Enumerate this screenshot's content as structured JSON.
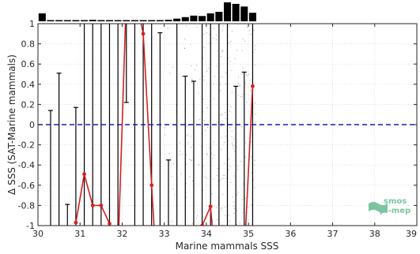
{
  "chart_data": {
    "type": "line",
    "xlabel": "Marine mammals SSS",
    "ylabel": "Δ SSS (SAT-Marine mammals)",
    "xlim": [
      30,
      39
    ],
    "ylim": [
      -1,
      1
    ],
    "x_ticks": [
      30,
      31,
      32,
      33,
      34,
      35,
      36,
      37,
      38,
      39
    ],
    "y_ticks": [
      -1,
      -0.8,
      -0.6,
      -0.4,
      -0.2,
      0,
      0.2,
      0.4,
      0.6,
      0.8,
      1
    ],
    "x_tick_labels": [
      "30",
      "31",
      "32",
      "33",
      "34",
      "35",
      "36",
      "37",
      "38",
      "39"
    ],
    "y_tick_labels": [
      "-1",
      "-0.8",
      "-0.6",
      "-0.4",
      "-0.2",
      "0",
      "0.2",
      "0.4",
      "0.6",
      "0.8",
      "1"
    ],
    "zero_line": {
      "y": 0,
      "color": "#1a1ab5",
      "style": "dashed"
    },
    "mean_series": {
      "color": "#d62020",
      "points": [
        {
          "x": 30.9,
          "y": -0.97
        },
        {
          "x": 31.1,
          "y": -0.49
        },
        {
          "x": 31.3,
          "y": -0.8
        },
        {
          "x": 31.5,
          "y": -0.8
        },
        {
          "x": 31.7,
          "y": -0.98
        },
        {
          "x": 31.9,
          "y": -1.3
        },
        {
          "x": 32.1,
          "y": 1.3
        },
        {
          "x": 32.3,
          "y": 1.3
        },
        {
          "x": 32.5,
          "y": 0.9
        },
        {
          "x": 32.7,
          "y": -0.6
        },
        {
          "x": 32.8,
          "y": -1.3
        },
        {
          "x": 33.7,
          "y": -1.3
        },
        {
          "x": 33.9,
          "y": -1.0
        },
        {
          "x": 34.1,
          "y": -0.81
        },
        {
          "x": 34.2,
          "y": -1.3
        },
        {
          "x": 34.9,
          "y": -1.3
        },
        {
          "x": 35.1,
          "y": 0.38
        }
      ]
    },
    "error_bars": [
      {
        "x": 30.3,
        "low": -1.0,
        "high": 0.14
      },
      {
        "x": 30.5,
        "low": -1.0,
        "high": 0.51
      },
      {
        "x": 30.7,
        "low": -1.0,
        "high": -0.79
      },
      {
        "x": 30.9,
        "low": -1.0,
        "high": 0.17
      },
      {
        "x": 31.1,
        "low": -1.0,
        "high": 1.0
      },
      {
        "x": 31.3,
        "low": -1.0,
        "high": 1.0
      },
      {
        "x": 31.5,
        "low": -1.0,
        "high": 1.0
      },
      {
        "x": 31.7,
        "low": -1.0,
        "high": 1.0
      },
      {
        "x": 31.9,
        "low": -1.0,
        "high": 1.0
      },
      {
        "x": 32.1,
        "low": 0.22,
        "high": 1.0
      },
      {
        "x": 32.3,
        "low": -1.0,
        "high": 1.0
      },
      {
        "x": 32.5,
        "low": -1.0,
        "high": 1.0
      },
      {
        "x": 32.7,
        "low": -1.0,
        "high": 1.0
      },
      {
        "x": 32.9,
        "low": -1.0,
        "high": 0.91
      },
      {
        "x": 33.1,
        "low": -1.0,
        "high": -0.35
      },
      {
        "x": 33.3,
        "low": -1.0,
        "high": 1.0
      },
      {
        "x": 33.5,
        "low": -1.0,
        "high": 0.48
      },
      {
        "x": 33.7,
        "low": -1.0,
        "high": 0.43
      },
      {
        "x": 33.9,
        "low": -1.0,
        "high": 1.0
      },
      {
        "x": 34.1,
        "low": -1.0,
        "high": 1.0
      },
      {
        "x": 34.3,
        "low": -1.0,
        "high": 1.0
      },
      {
        "x": 34.5,
        "low": -1.0,
        "high": 1.0
      },
      {
        "x": 34.7,
        "low": -1.0,
        "high": 0.38
      },
      {
        "x": 34.9,
        "low": -1.0,
        "high": 0.52
      },
      {
        "x": 35.1,
        "low": -1.0,
        "high": 1.0
      }
    ],
    "histogram": {
      "bin_edges": [
        30.0,
        30.2,
        30.4,
        30.6,
        30.8,
        31.0,
        31.2,
        31.4,
        31.6,
        31.8,
        32.0,
        32.2,
        32.4,
        32.6,
        32.8,
        33.0,
        33.2,
        33.4,
        33.6,
        33.8,
        34.0,
        34.2,
        34.4,
        34.6,
        34.8,
        35.0,
        35.2
      ],
      "relative_counts": [
        0.42,
        0.06,
        0.04,
        0.04,
        0.04,
        0.06,
        0.08,
        0.06,
        0.05,
        0.04,
        0.05,
        0.04,
        0.05,
        0.05,
        0.06,
        0.08,
        0.14,
        0.22,
        0.3,
        0.28,
        0.42,
        0.5,
        1.0,
        0.92,
        0.78,
        0.45
      ]
    },
    "grid": true
  },
  "logo": {
    "line1": "smos",
    "line2": "pi-mep"
  }
}
